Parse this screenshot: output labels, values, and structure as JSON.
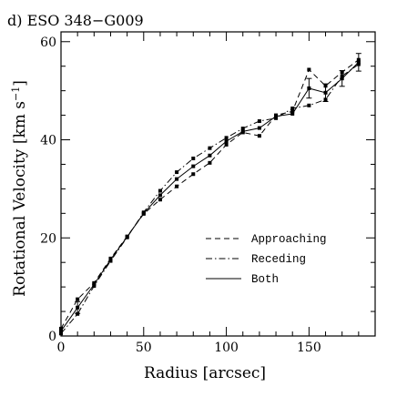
{
  "chart_data": {
    "type": "line",
    "title": "d) ESO 348−G009",
    "xlabel": "Radius [arcsec]",
    "ylabel_main": "Rotational Velocity [km s",
    "ylabel_sup": "−1",
    "ylabel_close": "]",
    "xlim": [
      0,
      190
    ],
    "ylim": [
      0,
      62
    ],
    "xticks": [
      0,
      50,
      100,
      150
    ],
    "yticks": [
      0,
      20,
      40,
      60
    ],
    "grid": false,
    "legend_position": "center-right",
    "series": [
      {
        "name": "Approaching",
        "style": "dashed",
        "x": [
          0,
          10,
          20,
          30,
          40,
          50,
          60,
          70,
          80,
          90,
          100,
          110,
          120,
          130,
          140,
          150,
          160,
          170,
          180
        ],
        "y": [
          1.5,
          7.5,
          10.8,
          15.8,
          20.3,
          24.9,
          27.8,
          30.5,
          33.0,
          35.3,
          39.0,
          41.5,
          40.8,
          45.0,
          45.8,
          54.3,
          51.0,
          53.8,
          56.3
        ]
      },
      {
        "name": "Receding",
        "style": "dashdot",
        "x": [
          0,
          10,
          20,
          30,
          40,
          50,
          60,
          70,
          80,
          90,
          100,
          110,
          120,
          130,
          140,
          150,
          160,
          170,
          180
        ],
        "y": [
          0.5,
          4.5,
          10.2,
          15.3,
          20.1,
          25.2,
          29.6,
          33.4,
          36.2,
          38.3,
          40.4,
          42.3,
          43.8,
          44.4,
          46.4,
          47.0,
          48.2,
          53.0,
          55.4
        ]
      },
      {
        "name": "Both",
        "style": "solid",
        "x": [
          0,
          10,
          20,
          30,
          40,
          50,
          60,
          70,
          80,
          90,
          100,
          110,
          120,
          130,
          140,
          150,
          160,
          170,
          180
        ],
        "y": [
          1.0,
          5.8,
          10.5,
          15.6,
          20.2,
          25.0,
          28.7,
          32.0,
          34.6,
          36.8,
          39.7,
          41.7,
          42.4,
          44.8,
          45.3,
          50.5,
          49.6,
          52.5,
          55.8
        ]
      }
    ],
    "error_x": [
      10,
      150,
      160,
      170,
      180
    ],
    "error_half": [
      1.2,
      2.0,
      1.8,
      1.6,
      1.8
    ]
  }
}
